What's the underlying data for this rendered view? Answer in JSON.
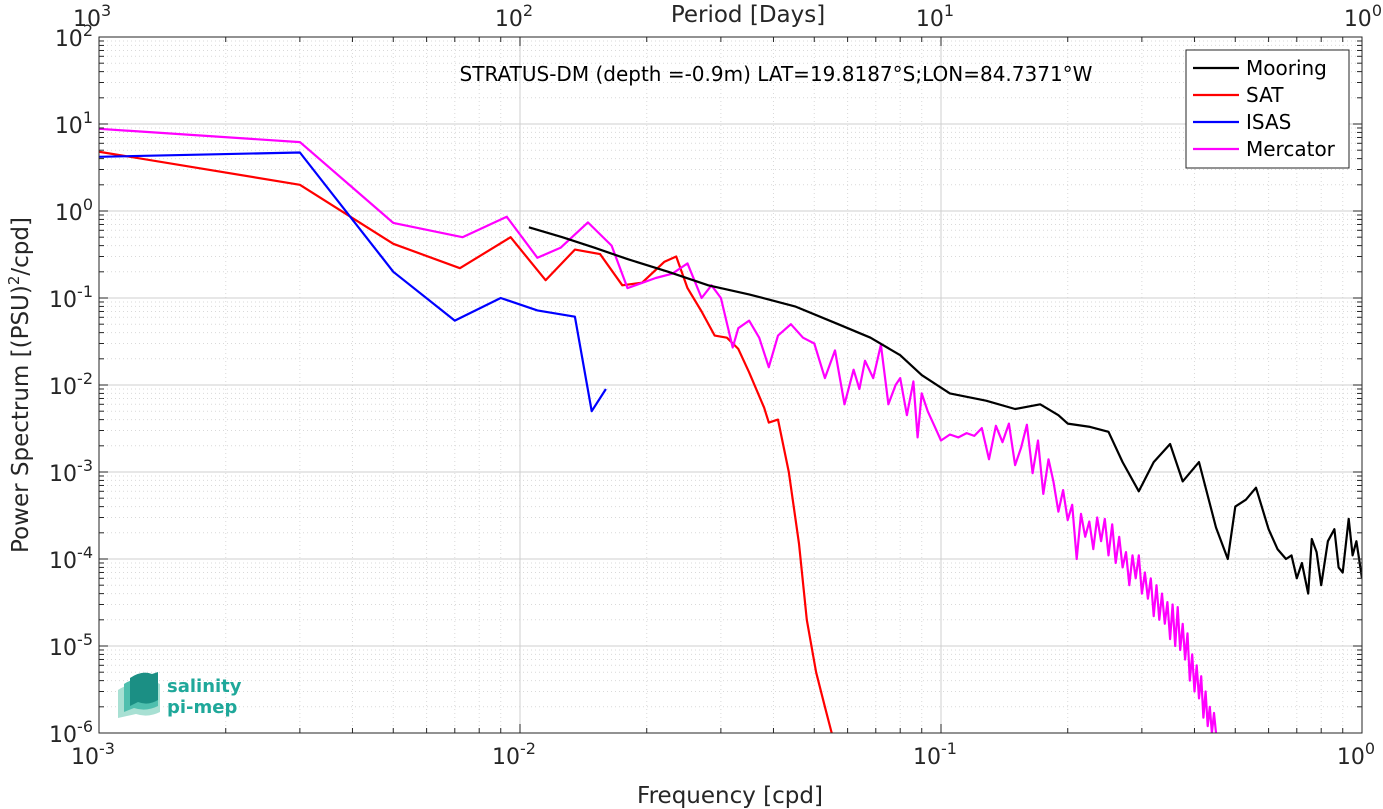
{
  "chart_data": {
    "type": "line",
    "title": "STRATUS-DM (depth =-0.9m) LAT=19.8187°S;LON=84.7371°W",
    "xlabel": "Frequency [cpd]",
    "ylabel": "Power Spectrum [(PSU)",
    "ylabel_sup": "2",
    "ylabel_end": "/cpd]",
    "top_xlabel": "Period [Days]",
    "xscale": "log",
    "yscale": "log",
    "xlim": [
      0.001,
      1
    ],
    "ylim": [
      1e-06,
      100
    ],
    "grid": true,
    "legend_position": "top-right",
    "x_ticks": [
      {
        "base": "10",
        "exp": "-3"
      },
      {
        "base": "10",
        "exp": "-2"
      },
      {
        "base": "10",
        "exp": "-1"
      },
      {
        "base": "10",
        "exp": "0"
      }
    ],
    "y_ticks": [
      {
        "base": "10",
        "exp": "-6"
      },
      {
        "base": "10",
        "exp": "-5"
      },
      {
        "base": "10",
        "exp": "-4"
      },
      {
        "base": "10",
        "exp": "-3"
      },
      {
        "base": "10",
        "exp": "-2"
      },
      {
        "base": "10",
        "exp": "-1"
      },
      {
        "base": "10",
        "exp": "0"
      },
      {
        "base": "10",
        "exp": "1"
      },
      {
        "base": "10",
        "exp": "2"
      }
    ],
    "top_ticks": [
      {
        "base": "10",
        "exp": "3"
      },
      {
        "base": "10",
        "exp": "2"
      },
      {
        "base": "10",
        "exp": "1"
      },
      {
        "base": "10",
        "exp": "0"
      }
    ],
    "series": [
      {
        "name": "Mooring",
        "color": "#000000",
        "points": [
          [
            0.0105,
            0.65
          ],
          [
            0.0126,
            0.5
          ],
          [
            0.015,
            0.38
          ],
          [
            0.018,
            0.28
          ],
          [
            0.0225,
            0.2
          ],
          [
            0.028,
            0.14
          ],
          [
            0.035,
            0.11
          ],
          [
            0.045,
            0.08
          ],
          [
            0.057,
            0.05
          ],
          [
            0.068,
            0.035
          ],
          [
            0.08,
            0.022
          ],
          [
            0.09,
            0.013
          ],
          [
            0.105,
            0.008
          ],
          [
            0.128,
            0.0066
          ],
          [
            0.15,
            0.0053
          ],
          [
            0.172,
            0.006
          ],
          [
            0.19,
            0.0045
          ],
          [
            0.2,
            0.0036
          ],
          [
            0.226,
            0.0033
          ],
          [
            0.25,
            0.0029
          ],
          [
            0.27,
            0.0013
          ],
          [
            0.295,
            0.0006
          ],
          [
            0.32,
            0.0013
          ],
          [
            0.35,
            0.0021
          ],
          [
            0.375,
            0.00078
          ],
          [
            0.41,
            0.0013
          ],
          [
            0.45,
            0.00023
          ],
          [
            0.48,
            0.0001
          ],
          [
            0.5,
            0.0004
          ],
          [
            0.53,
            0.00048
          ],
          [
            0.56,
            0.00066
          ],
          [
            0.6,
            0.00022
          ],
          [
            0.63,
            0.00013
          ],
          [
            0.66,
            0.0001
          ],
          [
            0.68,
            0.00011
          ],
          [
            0.7,
            6e-05
          ],
          [
            0.72,
            9e-05
          ],
          [
            0.745,
            4e-05
          ],
          [
            0.76,
            0.00017
          ],
          [
            0.78,
            0.00012
          ],
          [
            0.8,
            5e-05
          ],
          [
            0.83,
            0.00016
          ],
          [
            0.86,
            0.00022
          ],
          [
            0.88,
            8e-05
          ],
          [
            0.9,
            7e-05
          ],
          [
            0.93,
            0.00029
          ],
          [
            0.95,
            0.00011
          ],
          [
            0.97,
            0.00016
          ],
          [
            1.0,
            6e-05
          ]
        ]
      },
      {
        "name": "SAT",
        "color": "#ff0000",
        "points": [
          [
            0.001,
            4.8
          ],
          [
            0.003,
            2.0
          ],
          [
            0.005,
            0.42
          ],
          [
            0.0072,
            0.22
          ],
          [
            0.0095,
            0.5
          ],
          [
            0.0115,
            0.16
          ],
          [
            0.0135,
            0.36
          ],
          [
            0.0155,
            0.32
          ],
          [
            0.0175,
            0.14
          ],
          [
            0.0195,
            0.15
          ],
          [
            0.022,
            0.26
          ],
          [
            0.0235,
            0.3
          ],
          [
            0.025,
            0.13
          ],
          [
            0.027,
            0.07
          ],
          [
            0.029,
            0.037
          ],
          [
            0.031,
            0.035
          ],
          [
            0.033,
            0.026
          ],
          [
            0.035,
            0.014
          ],
          [
            0.038,
            0.0055
          ],
          [
            0.039,
            0.0037
          ],
          [
            0.041,
            0.004
          ],
          [
            0.0435,
            0.001
          ],
          [
            0.046,
            0.00015
          ],
          [
            0.048,
            2e-05
          ],
          [
            0.0505,
            5e-06
          ],
          [
            0.053,
            2e-06
          ],
          [
            0.055,
            1e-06
          ]
        ]
      },
      {
        "name": "ISAS",
        "color": "#0000ff",
        "points": [
          [
            0.001,
            4.2
          ],
          [
            0.003,
            4.7
          ],
          [
            0.005,
            0.2
          ],
          [
            0.007,
            0.055
          ],
          [
            0.009,
            0.1
          ],
          [
            0.011,
            0.072
          ],
          [
            0.0135,
            0.061
          ],
          [
            0.0148,
            0.005
          ],
          [
            0.016,
            0.009
          ]
        ]
      },
      {
        "name": "Mercator",
        "color": "#ff00ff",
        "points": [
          [
            0.001,
            8.8
          ],
          [
            0.003,
            6.2
          ],
          [
            0.005,
            0.73
          ],
          [
            0.0073,
            0.5
          ],
          [
            0.0093,
            0.86
          ],
          [
            0.011,
            0.29
          ],
          [
            0.0125,
            0.38
          ],
          [
            0.0145,
            0.74
          ],
          [
            0.0165,
            0.4
          ],
          [
            0.018,
            0.13
          ],
          [
            0.021,
            0.17
          ],
          [
            0.023,
            0.19
          ],
          [
            0.025,
            0.25
          ],
          [
            0.027,
            0.1
          ],
          [
            0.0285,
            0.14
          ],
          [
            0.03,
            0.1
          ],
          [
            0.032,
            0.027
          ],
          [
            0.033,
            0.045
          ],
          [
            0.035,
            0.055
          ],
          [
            0.037,
            0.035
          ],
          [
            0.039,
            0.016
          ],
          [
            0.041,
            0.037
          ],
          [
            0.044,
            0.05
          ],
          [
            0.047,
            0.035
          ],
          [
            0.05,
            0.03
          ],
          [
            0.053,
            0.012
          ],
          [
            0.056,
            0.025
          ],
          [
            0.059,
            0.006
          ],
          [
            0.062,
            0.015
          ],
          [
            0.064,
            0.009
          ],
          [
            0.066,
            0.019
          ],
          [
            0.069,
            0.012
          ],
          [
            0.072,
            0.029
          ],
          [
            0.075,
            0.006
          ],
          [
            0.078,
            0.01
          ],
          [
            0.08,
            0.012
          ],
          [
            0.083,
            0.0045
          ],
          [
            0.086,
            0.011
          ],
          [
            0.088,
            0.0025
          ],
          [
            0.09,
            0.008
          ],
          [
            0.093,
            0.005
          ],
          [
            0.097,
            0.0032
          ],
          [
            0.1,
            0.0023
          ],
          [
            0.105,
            0.0027
          ],
          [
            0.11,
            0.0025
          ],
          [
            0.115,
            0.0028
          ],
          [
            0.12,
            0.0026
          ],
          [
            0.125,
            0.0032
          ],
          [
            0.13,
            0.0014
          ],
          [
            0.135,
            0.0034
          ],
          [
            0.14,
            0.0022
          ],
          [
            0.145,
            0.0036
          ],
          [
            0.15,
            0.0012
          ],
          [
            0.155,
            0.0019
          ],
          [
            0.16,
            0.0035
          ],
          [
            0.165,
            0.00097
          ],
          [
            0.17,
            0.0023
          ],
          [
            0.175,
            0.00056
          ],
          [
            0.18,
            0.0014
          ],
          [
            0.185,
            0.00077
          ],
          [
            0.19,
            0.00035
          ],
          [
            0.195,
            0.00062
          ],
          [
            0.2,
            0.00028
          ],
          [
            0.205,
            0.00042
          ],
          [
            0.21,
            0.0001
          ],
          [
            0.215,
            0.00033
          ],
          [
            0.22,
            0.00018
          ],
          [
            0.225,
            0.00027
          ],
          [
            0.23,
            0.00013
          ],
          [
            0.235,
            0.0003
          ],
          [
            0.24,
            0.00016
          ],
          [
            0.245,
            0.00029
          ],
          [
            0.25,
            0.00011
          ],
          [
            0.255,
            0.00025
          ],
          [
            0.26,
            9e-05
          ],
          [
            0.265,
            0.00018
          ],
          [
            0.27,
            8e-05
          ],
          [
            0.275,
            0.00012
          ],
          [
            0.28,
            5e-05
          ],
          [
            0.285,
            0.00011
          ],
          [
            0.29,
            6e-05
          ],
          [
            0.295,
            0.00011
          ],
          [
            0.3,
            4e-05
          ],
          [
            0.305,
            7e-05
          ],
          [
            0.31,
            3.5e-05
          ],
          [
            0.315,
            6e-05
          ],
          [
            0.32,
            2.2e-05
          ],
          [
            0.325,
            5e-05
          ],
          [
            0.33,
            2e-05
          ],
          [
            0.335,
            4e-05
          ],
          [
            0.34,
            1.8e-05
          ],
          [
            0.345,
            3.2e-05
          ],
          [
            0.35,
            1.2e-05
          ],
          [
            0.355,
            3e-05
          ],
          [
            0.36,
            1e-05
          ],
          [
            0.365,
            2.8e-05
          ],
          [
            0.37,
            9e-06
          ],
          [
            0.375,
            1.8e-05
          ],
          [
            0.38,
            7e-06
          ],
          [
            0.385,
            1.4e-05
          ],
          [
            0.39,
            4e-06
          ],
          [
            0.395,
            8e-06
          ],
          [
            0.4,
            3e-06
          ],
          [
            0.405,
            6e-06
          ],
          [
            0.41,
            2.5e-06
          ],
          [
            0.415,
            4.5e-06
          ],
          [
            0.42,
            1.5e-06
          ],
          [
            0.425,
            3e-06
          ],
          [
            0.43,
            1.2e-06
          ],
          [
            0.435,
            2e-06
          ],
          [
            0.44,
            1e-06
          ],
          [
            0.445,
            1.7e-06
          ],
          [
            0.45,
            1e-06
          ]
        ]
      }
    ]
  },
  "logo": {
    "line1": "salinity",
    "line2": "pi-mep",
    "color": "#1fa89a"
  }
}
